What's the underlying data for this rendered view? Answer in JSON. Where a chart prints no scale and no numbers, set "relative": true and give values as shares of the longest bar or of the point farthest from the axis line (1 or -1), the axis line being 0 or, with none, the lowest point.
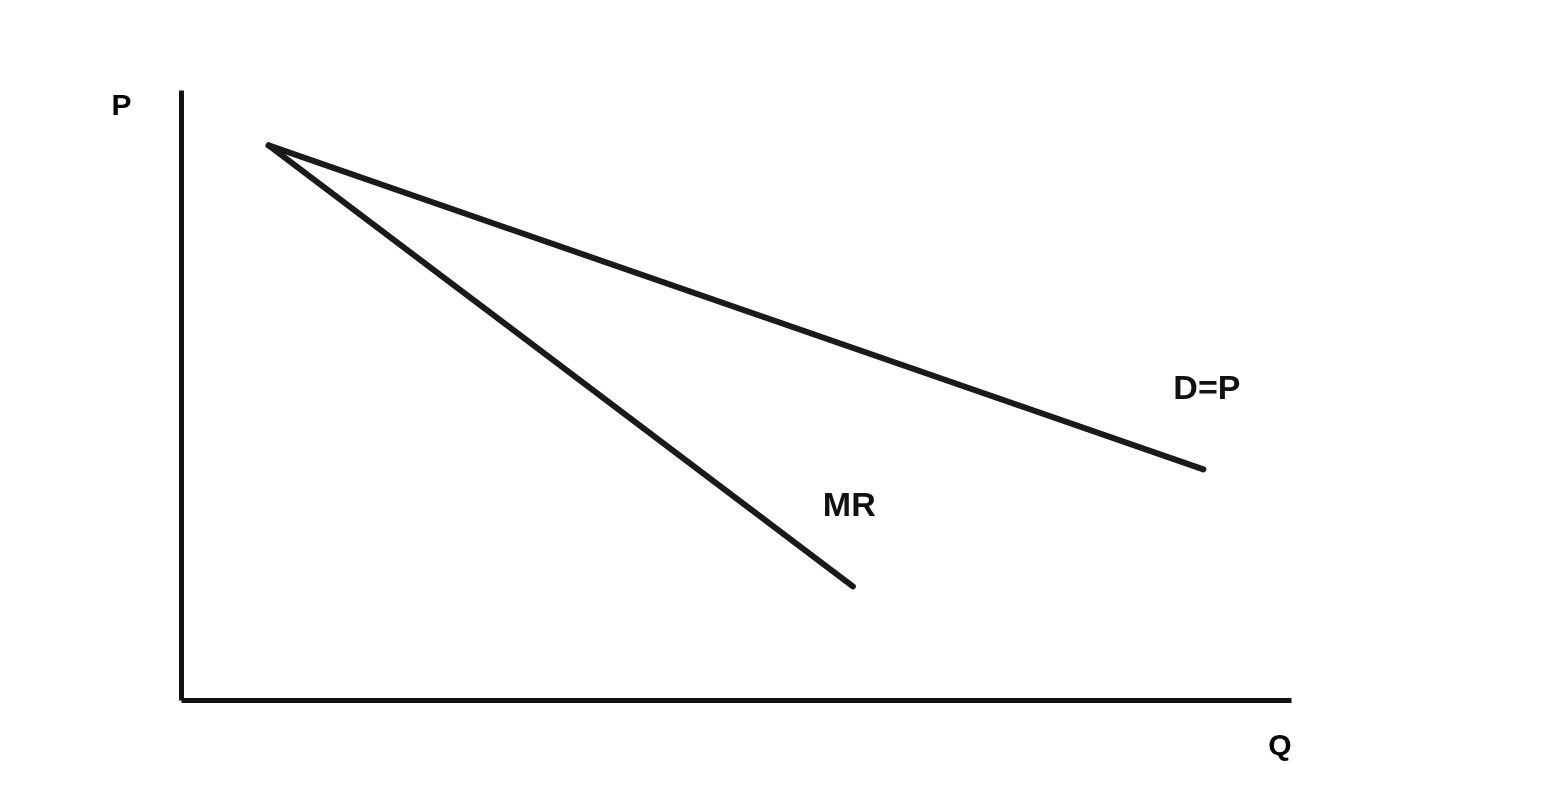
{
  "chart_data": {
    "type": "line",
    "relative": true,
    "xlabel": "Q",
    "ylabel": "P",
    "categories": [
      null,
      null,
      null,
      null,
      null,
      null,
      null,
      null,
      null,
      null,
      null,
      null,
      null,
      null,
      null,
      null,
      null
    ],
    "series": [
      {
        "name": "D=P",
        "color": "#1a1a1a",
        "values": [
          1,
          null,
          null,
          null,
          null,
          null,
          null,
          null,
          null,
          null,
          null,
          null,
          null,
          null,
          null,
          null,
          0.416
        ]
      },
      {
        "name": "MR",
        "color": "#1a1a1a",
        "values": [
          1,
          null,
          null,
          null,
          null,
          null,
          null,
          null,
          null,
          null,
          0.205,
          null,
          null,
          null,
          null,
          null,
          null
        ]
      }
    ],
    "grid": false,
    "legend": false,
    "tick_labels": false,
    "marker": "none",
    "line_style": "solid"
  }
}
